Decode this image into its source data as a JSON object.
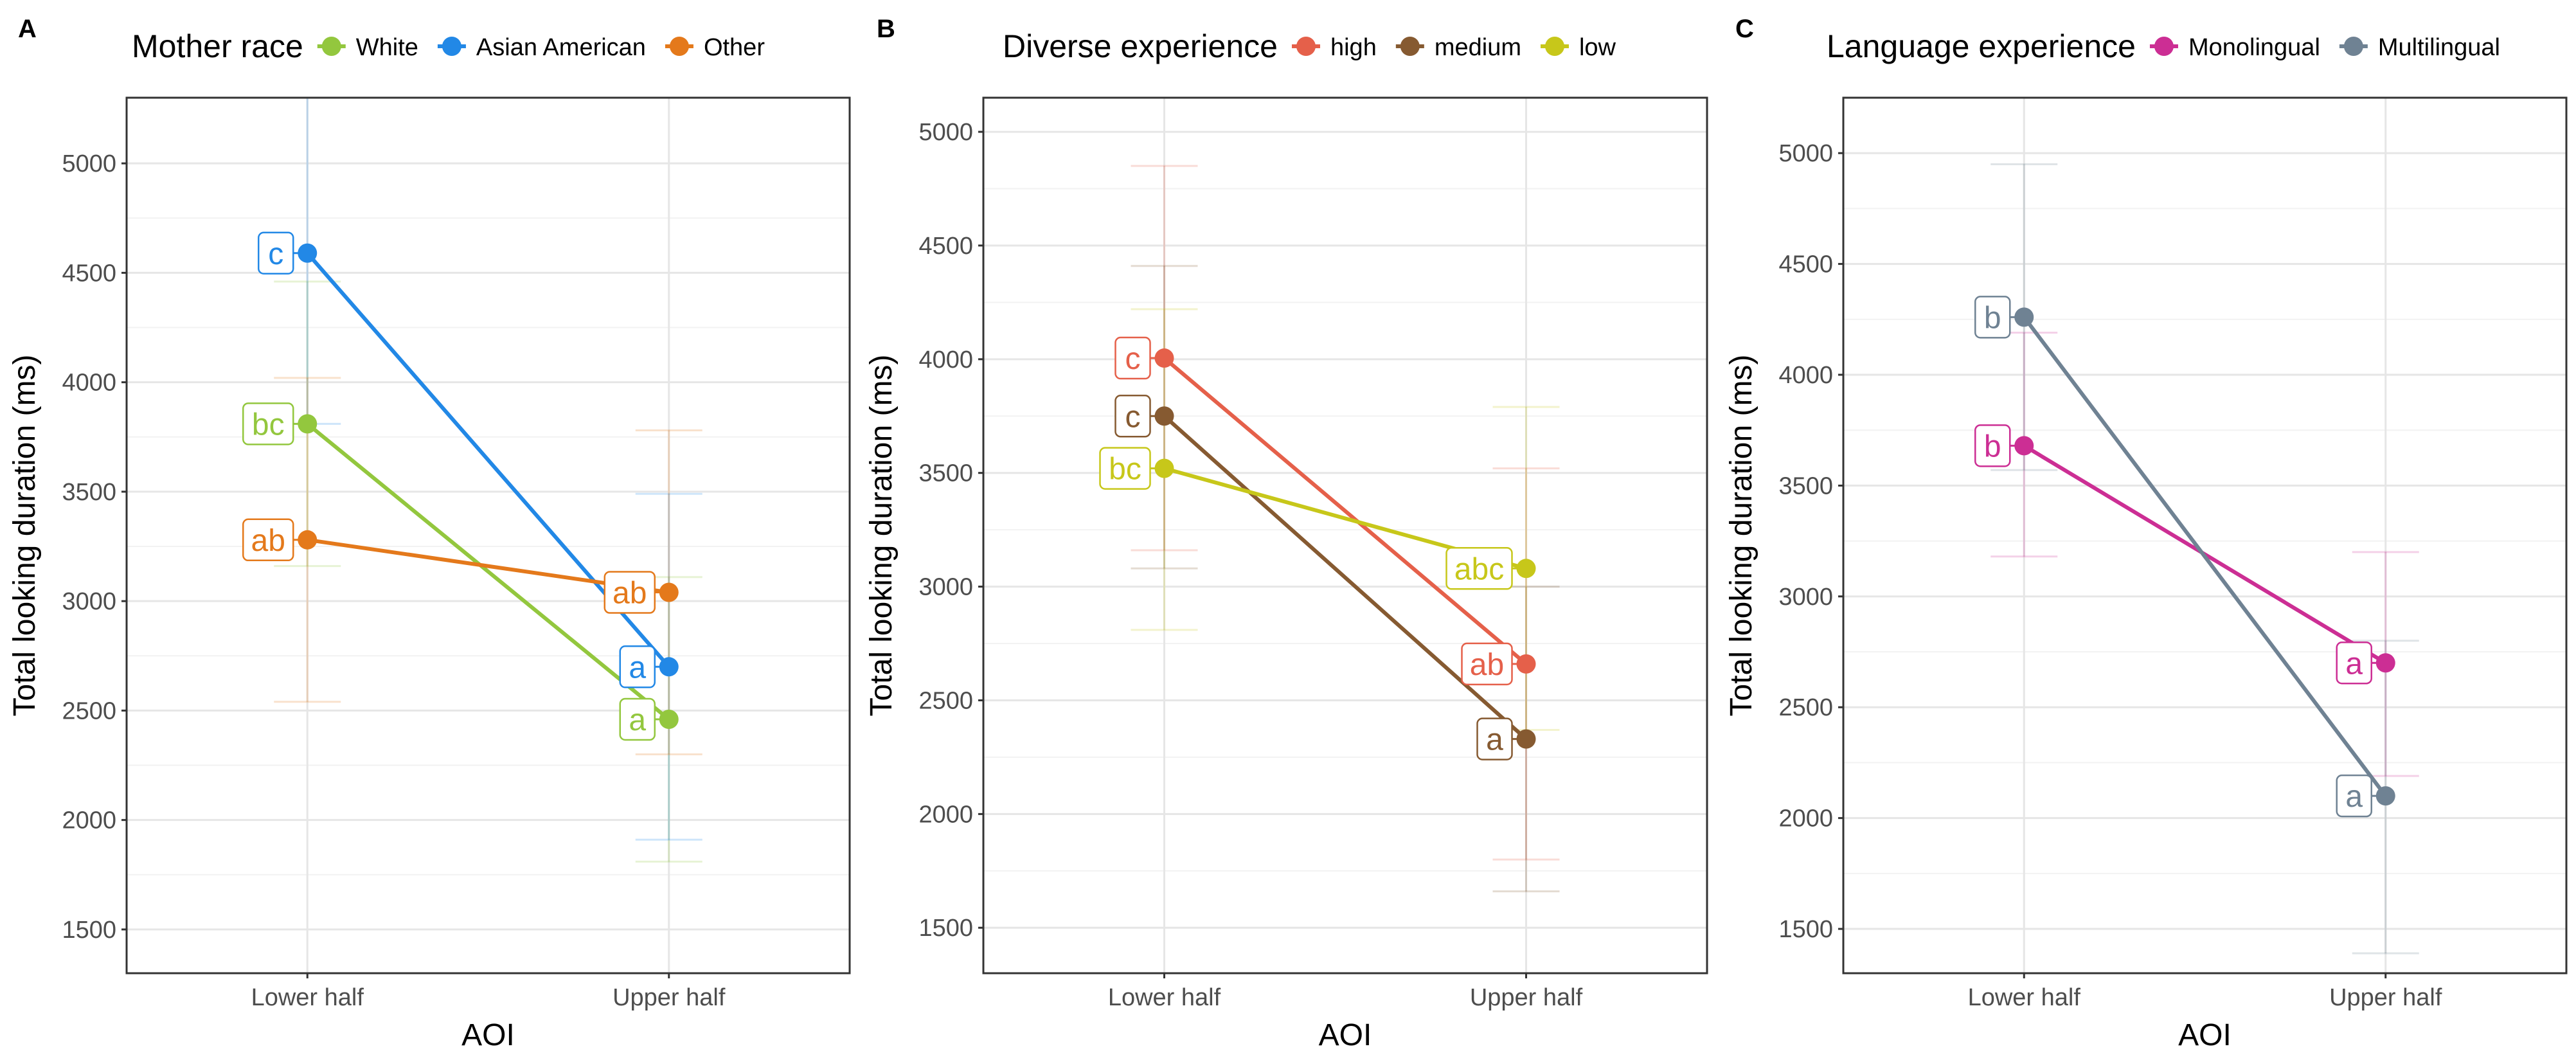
{
  "chart_data": [
    {
      "panel_label": "A",
      "type": "line",
      "legend_title": "Mother race",
      "legend_position": "top",
      "xlabel": "AOI",
      "ylabel": "Total looking duration (ms)",
      "categories": [
        "Lower half",
        "Upper half"
      ],
      "ylim": [
        1300,
        5300
      ],
      "yticks": [
        1500,
        2000,
        2500,
        3000,
        3500,
        4000,
        4500,
        5000
      ],
      "grid": true,
      "series": [
        {
          "name": "White",
          "color": "#93c73e",
          "values": [
            3810,
            2460
          ],
          "letters": [
            "bc",
            "a"
          ],
          "error_low": [
            3160,
            1810
          ],
          "error_high": [
            4460,
            3110
          ]
        },
        {
          "name": "Asian American",
          "color": "#2288e6",
          "values": [
            4590,
            2700
          ],
          "letters": [
            "c",
            "a"
          ],
          "error_low": [
            3810,
            1910
          ],
          "error_high": [
            5370,
            3490
          ]
        },
        {
          "name": "Other",
          "color": "#e4791b",
          "values": [
            3280,
            3040
          ],
          "letters": [
            "ab",
            "ab"
          ],
          "error_low": [
            2540,
            2300
          ],
          "error_high": [
            4020,
            3780
          ]
        }
      ]
    },
    {
      "panel_label": "B",
      "type": "line",
      "legend_title": "Diverse experience",
      "legend_position": "top",
      "xlabel": "AOI",
      "ylabel": "Total looking duration (ms)",
      "categories": [
        "Lower half",
        "Upper half"
      ],
      "ylim": [
        1300,
        5150
      ],
      "yticks": [
        1500,
        2000,
        2500,
        3000,
        3500,
        4000,
        4500,
        5000
      ],
      "grid": true,
      "series": [
        {
          "name": "high",
          "color": "#e5604a",
          "values": [
            4005,
            2660
          ],
          "letters": [
            "c",
            "ab"
          ],
          "error_low": [
            3160,
            1800
          ],
          "error_high": [
            4850,
            3520
          ]
        },
        {
          "name": "medium",
          "color": "#865a31",
          "values": [
            3750,
            2330
          ],
          "letters": [
            "c",
            "a"
          ],
          "error_low": [
            3080,
            1660
          ],
          "error_high": [
            4410,
            3000
          ]
        },
        {
          "name": "low",
          "color": "#c7c71a",
          "values": [
            3520,
            3080
          ],
          "letters": [
            "bc",
            "abc"
          ],
          "error_low": [
            2810,
            2370
          ],
          "error_high": [
            4220,
            3790
          ]
        }
      ]
    },
    {
      "panel_label": "C",
      "type": "line",
      "legend_title": "Language experience",
      "legend_position": "top",
      "xlabel": "AOI",
      "ylabel": "Total looking duration (ms)",
      "categories": [
        "Lower half",
        "Upper half"
      ],
      "ylim": [
        1300,
        5250
      ],
      "yticks": [
        1500,
        2000,
        2500,
        3000,
        3500,
        4000,
        4500,
        5000
      ],
      "grid": true,
      "series": [
        {
          "name": "Monolingual",
          "color": "#cc2e94",
          "values": [
            3680,
            2700
          ],
          "letters": [
            "b",
            "a"
          ],
          "error_low": [
            3180,
            2190
          ],
          "error_high": [
            4190,
            3200
          ]
        },
        {
          "name": "Multilingual",
          "color": "#6f8293",
          "values": [
            4260,
            2100
          ],
          "letters": [
            "b",
            "a"
          ],
          "error_low": [
            3570,
            1390
          ],
          "error_high": [
            4950,
            2800
          ]
        }
      ]
    }
  ]
}
